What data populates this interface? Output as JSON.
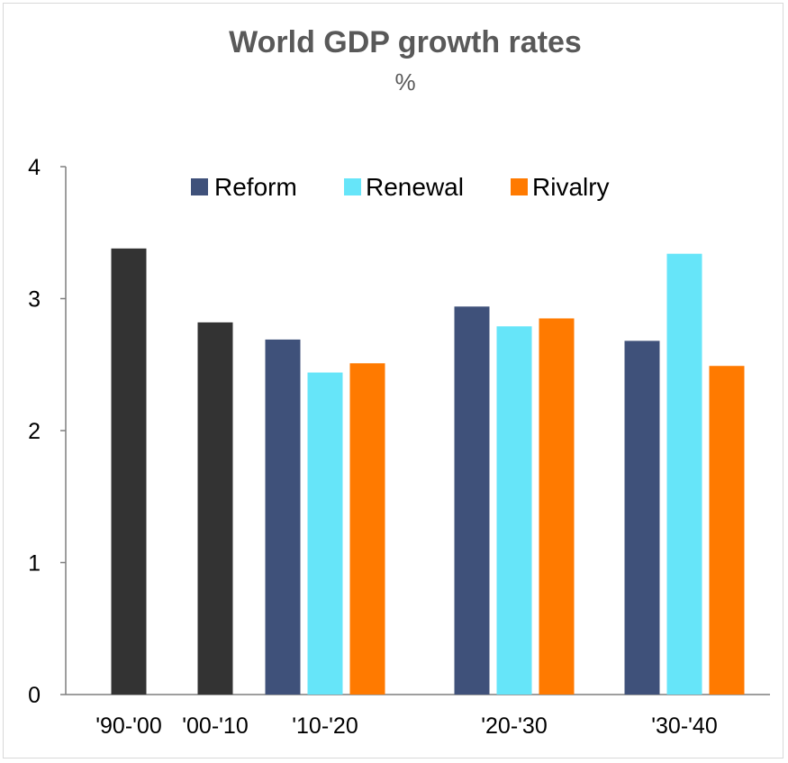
{
  "chart_data": {
    "type": "bar",
    "title": "World GDP growth rates",
    "subtitle": "%",
    "categories": [
      "'90-'00",
      "'00-'10",
      "'10-'20",
      "'20-'30",
      "'30-'40"
    ],
    "historical": {
      "color": "#333333",
      "values": [
        3.38,
        2.82,
        null,
        null,
        null
      ]
    },
    "series": [
      {
        "name": "Reform",
        "color": "#3F517A",
        "values": [
          null,
          null,
          2.69,
          2.94,
          2.68
        ]
      },
      {
        "name": "Renewal",
        "color": "#66E5F9",
        "values": [
          null,
          null,
          2.44,
          2.79,
          3.34
        ]
      },
      {
        "name": "Rivalry",
        "color": "#FF7A00",
        "values": [
          null,
          null,
          2.51,
          2.85,
          2.49
        ]
      }
    ],
    "ylim": [
      0,
      4
    ],
    "yticks": [
      0,
      1,
      2,
      3,
      4
    ],
    "grid": false,
    "legend": "top-center"
  }
}
